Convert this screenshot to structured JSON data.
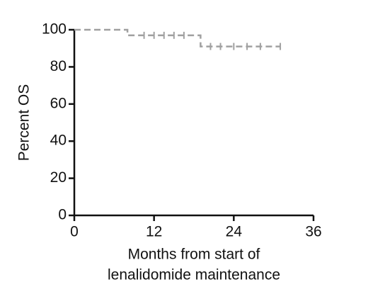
{
  "chart_data": {
    "type": "line",
    "ylabel": "Percent OS",
    "xlabel": [
      "Months from start of",
      "lenalidomide maintenance"
    ],
    "x": [
      0,
      8,
      8,
      19,
      19,
      31
    ],
    "series": [
      {
        "color": "#a0a0a0",
        "values": [
          100,
          100,
          97,
          97,
          91,
          91
        ]
      }
    ],
    "censored": {
      "x": [
        10.5,
        12,
        13.5,
        15,
        16.5,
        20.5,
        22,
        24,
        26,
        28,
        31
      ],
      "values": [
        97,
        97,
        97,
        97,
        97,
        91,
        91,
        91,
        91,
        91,
        91
      ]
    },
    "xlim": [
      0,
      36
    ],
    "xticks": [
      0,
      12,
      24,
      36
    ],
    "ylim": [
      0,
      100
    ],
    "yticks": [
      0,
      20,
      40,
      60,
      80,
      100
    ]
  }
}
